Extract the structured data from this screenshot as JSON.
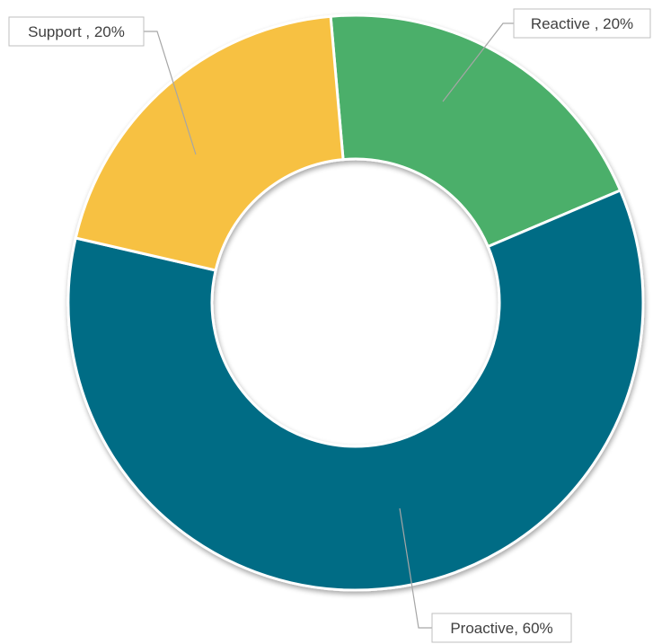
{
  "chart_data": {
    "type": "pie",
    "variant": "donut",
    "title": "",
    "slices": [
      {
        "name": "Reactive",
        "value": 20,
        "label": "Reactive , 20%",
        "color": "#4caf6a"
      },
      {
        "name": "Proactive",
        "value": 60,
        "label": "Proactive, 60%",
        "color": "#006c85"
      },
      {
        "name": "Support",
        "value": 20,
        "label": "Support , 20%",
        "color": "#f7c143"
      }
    ],
    "legend": "none",
    "data_labels": "outside with leader lines"
  }
}
